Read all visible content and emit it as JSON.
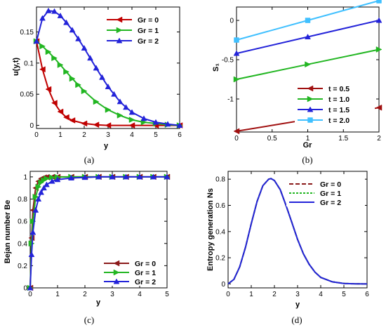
{
  "chart_data": [
    {
      "type": "line",
      "caption": "(a)",
      "xlabel": "y",
      "ylabel": "u(y,t)",
      "xlim": [
        0,
        6
      ],
      "ylim": [
        -0.005,
        0.19
      ],
      "xticks": [
        "0",
        "1",
        "2",
        "3",
        "4",
        "5",
        "6"
      ],
      "yticks": [
        "0",
        "0.05",
        "0.1",
        "0.15"
      ],
      "legend_position": "top-center",
      "series": [
        {
          "name": "Gr = 0",
          "color": "#c00000",
          "marker": "triangle-left",
          "x": [
            0,
            0.25,
            0.5,
            0.75,
            1,
            1.25,
            1.5,
            2,
            2.5,
            3,
            4,
            5,
            6
          ],
          "y": [
            0.135,
            0.09,
            0.058,
            0.036,
            0.022,
            0.013,
            0.008,
            0.003,
            0.001,
            0,
            0,
            0,
            0
          ]
        },
        {
          "name": "Gr = 1",
          "color": "#22b622",
          "marker": "triangle-right",
          "x": [
            0,
            0.25,
            0.5,
            0.75,
            1,
            1.25,
            1.5,
            1.75,
            2,
            2.5,
            3,
            3.5,
            4,
            4.5,
            5,
            5.5,
            6
          ],
          "y": [
            0.135,
            0.127,
            0.118,
            0.108,
            0.097,
            0.086,
            0.075,
            0.065,
            0.055,
            0.038,
            0.025,
            0.016,
            0.009,
            0.005,
            0.003,
            0.001,
            0
          ]
        },
        {
          "name": "Gr = 2",
          "color": "#2323d9",
          "marker": "triangle-up",
          "x": [
            0,
            0.25,
            0.5,
            0.75,
            1,
            1.25,
            1.5,
            1.75,
            2,
            2.25,
            2.5,
            2.75,
            3,
            3.25,
            3.5,
            3.75,
            4,
            4.5,
            5,
            5.5,
            6
          ],
          "y": [
            0.135,
            0.172,
            0.184,
            0.183,
            0.176,
            0.165,
            0.153,
            0.139,
            0.124,
            0.108,
            0.092,
            0.077,
            0.062,
            0.05,
            0.038,
            0.029,
            0.021,
            0.011,
            0.005,
            0.002,
            0
          ]
        }
      ]
    },
    {
      "type": "line",
      "caption": "(b)",
      "xlabel": "Gr",
      "ylabel": "S₁",
      "xlim": [
        0,
        2
      ],
      "ylim": [
        -1.42,
        0.17
      ],
      "xticks": [
        "0",
        "0.5",
        "1",
        "1.5",
        "2"
      ],
      "yticks": [
        "0",
        "-0.5",
        "-1"
      ],
      "legend_position": "bottom-right",
      "series": [
        {
          "name": "t = 0.5",
          "color": "#a01010",
          "marker": "triangle-left",
          "x": [
            0,
            1,
            2
          ],
          "y": [
            -1.41,
            -1.26,
            -1.11
          ]
        },
        {
          "name": "t = 1.0",
          "color": "#22b622",
          "marker": "triangle-right",
          "x": [
            0,
            1,
            2
          ],
          "y": [
            -0.75,
            -0.56,
            -0.37
          ]
        },
        {
          "name": "t = 1.5",
          "color": "#2323d9",
          "marker": "triangle-up",
          "x": [
            0,
            1,
            2
          ],
          "y": [
            -0.42,
            -0.21,
            0.0
          ]
        },
        {
          "name": "t = 2.0",
          "color": "#40c0ff",
          "marker": "square",
          "x": [
            0,
            1,
            2
          ],
          "y": [
            -0.25,
            0.0,
            0.25
          ]
        }
      ]
    },
    {
      "type": "line",
      "caption": "(c)",
      "xlabel": "y",
      "ylabel": "Bejan number Be",
      "xlim": [
        0,
        5
      ],
      "ylim": [
        0,
        1.05
      ],
      "xticks": [
        "0",
        "1",
        "2",
        "3",
        "4",
        "5"
      ],
      "yticks": [
        "0",
        "0.2",
        "0.4",
        "0.6",
        "0.8",
        "1"
      ],
      "legend_position": "bottom-right",
      "series": [
        {
          "name": "Gr = 0",
          "color": "#8b1a1a",
          "marker": "triangle-left",
          "x": [
            0,
            0.05,
            0.1,
            0.2,
            0.3,
            0.4,
            0.5,
            0.6,
            0.8,
            1,
            1.5,
            2,
            2.5,
            3,
            3.5,
            4,
            4.5,
            5
          ],
          "y": [
            0,
            0.45,
            0.7,
            0.9,
            0.96,
            0.985,
            0.995,
            0.998,
            1,
            1,
            1,
            1,
            1,
            1,
            1,
            1,
            1,
            1
          ]
        },
        {
          "name": "Gr = 1",
          "color": "#22b622",
          "marker": "triangle-right",
          "x": [
            0,
            0.05,
            0.1,
            0.2,
            0.3,
            0.4,
            0.5,
            0.6,
            0.8,
            1,
            1.5,
            2,
            2.5,
            3,
            3.5,
            4,
            4.5,
            5
          ],
          "y": [
            0,
            0.4,
            0.6,
            0.82,
            0.91,
            0.95,
            0.97,
            0.985,
            0.995,
            0.998,
            1,
            1,
            1,
            1,
            1,
            1,
            1,
            1
          ]
        },
        {
          "name": "Gr = 2",
          "color": "#2323d9",
          "marker": "triangle-up",
          "x": [
            0,
            0.05,
            0.1,
            0.2,
            0.3,
            0.4,
            0.5,
            0.6,
            0.8,
            1,
            1.5,
            2,
            2.5,
            3,
            3.5,
            4,
            4.5,
            5
          ],
          "y": [
            0,
            0.3,
            0.5,
            0.7,
            0.8,
            0.86,
            0.9,
            0.93,
            0.96,
            0.975,
            0.99,
            0.995,
            1,
            1,
            1,
            1,
            1,
            1
          ]
        }
      ]
    },
    {
      "type": "line",
      "caption": "(d)",
      "xlabel": "y",
      "ylabel": "Entropy generation Ns",
      "xlim": [
        0,
        6
      ],
      "ylim": [
        -0.03,
        0.86
      ],
      "xticks": [
        "0",
        "1",
        "2",
        "3",
        "4",
        "5",
        "6"
      ],
      "yticks": [
        "0",
        "0.2",
        "0.4",
        "0.6",
        "0.8"
      ],
      "legend_position": "top-right",
      "series": [
        {
          "name": "Gr = 0",
          "color": "#8b1a1a",
          "dash": "6,3",
          "x": [
            0,
            0.25,
            0.5,
            0.75,
            1,
            1.25,
            1.5,
            1.75,
            1.85,
            2,
            2.25,
            2.5,
            2.75,
            3,
            3.25,
            3.5,
            3.75,
            4,
            4.5,
            5,
            5.5,
            6
          ],
          "y": [
            0,
            0.035,
            0.13,
            0.28,
            0.46,
            0.63,
            0.75,
            0.8,
            0.805,
            0.79,
            0.72,
            0.6,
            0.47,
            0.34,
            0.23,
            0.15,
            0.09,
            0.05,
            0.016,
            0.004,
            0.001,
            0
          ]
        },
        {
          "name": "Gr = 1",
          "color": "#22b622",
          "dash": "3,2",
          "x": [
            0,
            0.25,
            0.5,
            0.75,
            1,
            1.25,
            1.5,
            1.75,
            1.85,
            2,
            2.25,
            2.5,
            2.75,
            3,
            3.25,
            3.5,
            3.75,
            4,
            4.5,
            5,
            5.5,
            6
          ],
          "y": [
            0,
            0.035,
            0.13,
            0.28,
            0.46,
            0.63,
            0.75,
            0.8,
            0.805,
            0.79,
            0.72,
            0.6,
            0.47,
            0.34,
            0.23,
            0.15,
            0.09,
            0.05,
            0.016,
            0.004,
            0.001,
            0
          ]
        },
        {
          "name": "Gr = 2",
          "color": "#2323d9",
          "dash": "",
          "x": [
            0,
            0.25,
            0.5,
            0.75,
            1,
            1.25,
            1.5,
            1.75,
            1.85,
            2,
            2.25,
            2.5,
            2.75,
            3,
            3.25,
            3.5,
            3.75,
            4,
            4.5,
            5,
            5.5,
            6
          ],
          "y": [
            0,
            0.035,
            0.13,
            0.28,
            0.46,
            0.63,
            0.75,
            0.8,
            0.805,
            0.79,
            0.72,
            0.6,
            0.47,
            0.34,
            0.23,
            0.15,
            0.09,
            0.05,
            0.016,
            0.004,
            0.001,
            0
          ]
        }
      ]
    }
  ]
}
